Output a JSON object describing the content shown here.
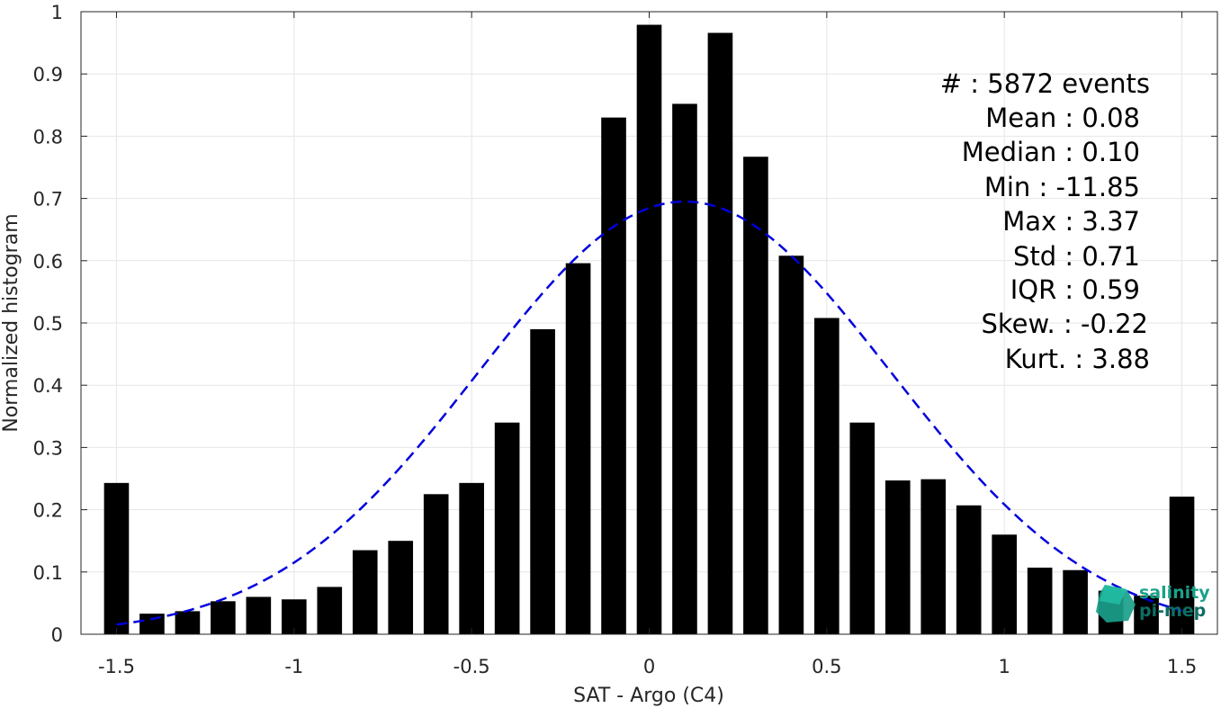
{
  "chart_data": {
    "type": "bar",
    "title": "",
    "xlabel": "SAT - Argo (C4)",
    "ylabel": "Normalized histogram",
    "xlim": [
      -1.6,
      1.6
    ],
    "ylim": [
      0,
      1
    ],
    "grid": true,
    "xticks": [
      "-1.5",
      "-1",
      "-0.5",
      "0",
      "0.5",
      "1",
      "1.5"
    ],
    "yticks": [
      "0",
      "0.1",
      "0.2",
      "0.3",
      "0.4",
      "0.5",
      "0.6",
      "0.7",
      "0.8",
      "0.9",
      "1"
    ],
    "x": [
      -1.5,
      -1.4,
      -1.3,
      -1.2,
      -1.1,
      -1.0,
      -0.9,
      -0.8,
      -0.7,
      -0.6,
      -0.5,
      -0.4,
      -0.3,
      -0.2,
      -0.1,
      0.0,
      0.1,
      0.2,
      0.3,
      0.4,
      0.5,
      0.6,
      0.7,
      0.8,
      0.9,
      1.0,
      1.1,
      1.2,
      1.3,
      1.4,
      1.5
    ],
    "values": [
      0.243,
      0.033,
      0.037,
      0.053,
      0.06,
      0.056,
      0.076,
      0.135,
      0.15,
      0.225,
      0.243,
      0.34,
      0.49,
      0.596,
      0.83,
      0.979,
      0.852,
      0.966,
      0.767,
      0.608,
      0.508,
      0.34,
      0.247,
      0.249,
      0.207,
      0.16,
      0.107,
      0.103,
      0.07,
      0.062,
      0.221
    ],
    "bar_color": "#000000",
    "fit_curve": {
      "style": "dashed",
      "color": "#0000dd",
      "mean": 0.1,
      "std": 0.58,
      "peak": 0.695,
      "x_range": [
        -1.5,
        1.5
      ]
    },
    "stats_lines": [
      "#  : 5872 events",
      "Mean : 0.08",
      "Median : 0.10",
      "Min : -11.85",
      "Max : 3.37",
      "Std : 0.71",
      "IQR : 0.59",
      "Skew. : -0.22",
      "Kurt. : 3.88"
    ]
  },
  "logo": {
    "line1": "salinity",
    "line2": "pi-mep",
    "colors": [
      "#1aa08a",
      "#0d6e62"
    ]
  }
}
